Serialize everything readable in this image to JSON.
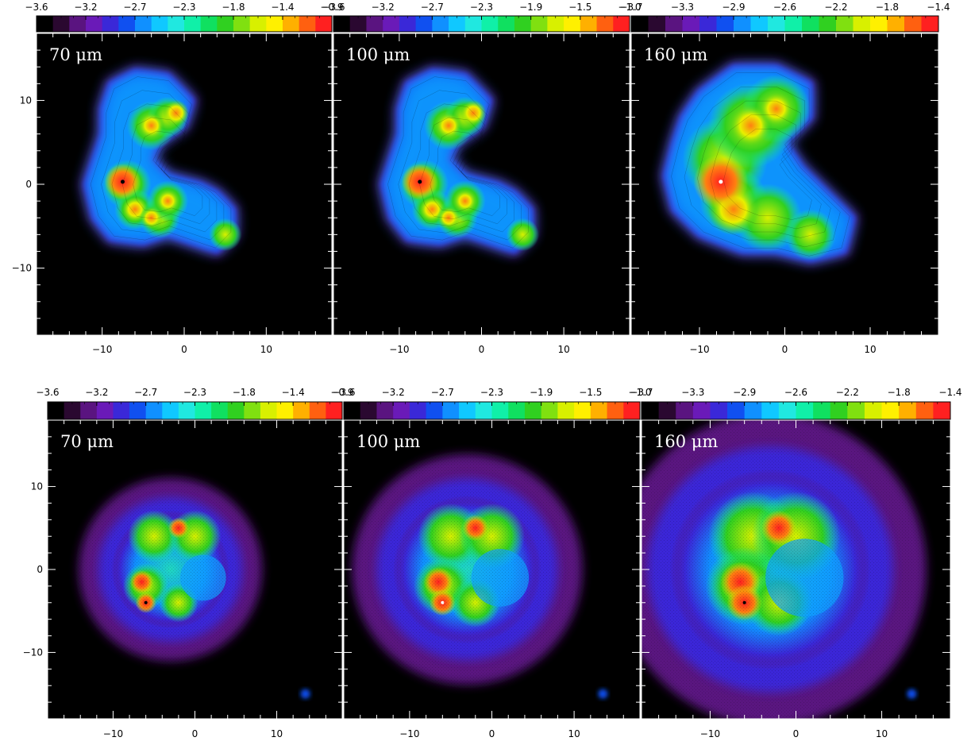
{
  "chart_data": [
    {
      "type": "heatmap",
      "row": "top",
      "panel_labels": [
        "70 μm",
        "100 μm",
        "160 μm"
      ],
      "colorbars": [
        {
          "tick_labels": [
            "−3.6",
            "−3.2",
            "−2.7",
            "−2.3",
            "−1.8",
            "−1.4",
            "−0.9"
          ],
          "range": [
            -3.6,
            -0.9
          ]
        },
        {
          "tick_labels": [
            "−3.6",
            "−3.2",
            "−2.7",
            "−2.3",
            "−1.9",
            "−1.5",
            "−1.0"
          ],
          "range": [
            -3.6,
            -1.0
          ]
        },
        {
          "tick_labels": [
            "−3.7",
            "−3.3",
            "−2.9",
            "−2.6",
            "−2.2",
            "−1.8",
            "−1.4"
          ],
          "range": [
            -3.7,
            -1.4
          ]
        }
      ],
      "xlim": [
        -18,
        18
      ],
      "ylim": [
        -18,
        18
      ],
      "x_tick_labels": [
        "−10",
        "0",
        "10"
      ],
      "y_tick_labels": [
        "10",
        "0",
        "−10"
      ],
      "bright_peaks_approx": [
        {
          "panel": "70 μm",
          "x": -7.5,
          "y": 0.3
        },
        {
          "panel": "100 μm",
          "x": -7.5,
          "y": 0.3
        },
        {
          "panel": "160 μm",
          "x": -7.5,
          "y": 0.3
        }
      ]
    },
    {
      "type": "heatmap",
      "row": "bottom",
      "panel_labels": [
        "70 μm",
        "100 μm",
        "160 μm"
      ],
      "colorbars": [
        {
          "tick_labels": [
            "−3.6",
            "−3.2",
            "−2.7",
            "−2.3",
            "−1.8",
            "−1.4",
            "−0.9"
          ],
          "range": [
            -3.6,
            -0.9
          ]
        },
        {
          "tick_labels": [
            "−3.6",
            "−3.2",
            "−2.7",
            "−2.3",
            "−1.9",
            "−1.5",
            "−1.0"
          ],
          "range": [
            -3.6,
            -1.0
          ]
        },
        {
          "tick_labels": [
            "−3.7",
            "−3.3",
            "−2.9",
            "−2.6",
            "−2.2",
            "−1.8",
            "−1.4"
          ],
          "range": [
            -3.7,
            -1.4
          ]
        }
      ],
      "xlim": [
        -18,
        18
      ],
      "ylim": [
        -18,
        18
      ],
      "x_tick_labels": [
        "−10",
        "0",
        "10"
      ],
      "y_tick_labels": [
        "10",
        "0",
        "−10"
      ],
      "bright_peaks_approx": [
        {
          "panel": "70 μm",
          "x": -6.0,
          "y": -4.0
        },
        {
          "panel": "100 μm",
          "x": -6.0,
          "y": -4.0
        },
        {
          "panel": "160 μm",
          "x": -6.0,
          "y": -4.0
        }
      ]
    }
  ],
  "colormap": [
    "#000000",
    "#2a0830",
    "#5a1480",
    "#6a1ab8",
    "#3a28d8",
    "#1050f0",
    "#1090ff",
    "#10c8ff",
    "#20e8e0",
    "#10f0a8",
    "#10e060",
    "#30d020",
    "#80e010",
    "#d8f000",
    "#fff000",
    "#ffb000",
    "#ff6010",
    "#ff2020"
  ]
}
